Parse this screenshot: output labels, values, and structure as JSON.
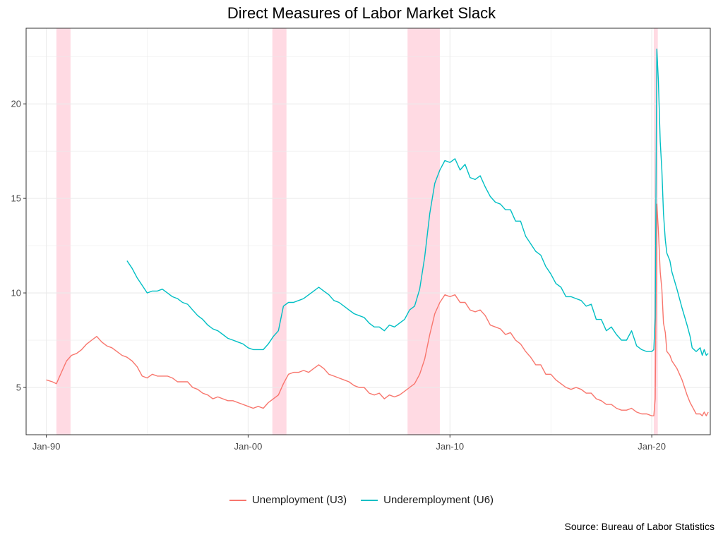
{
  "chart_data": {
    "type": "line",
    "title": "Direct Measures of Labor Market Slack",
    "xlabel": "",
    "ylabel": "",
    "source": "Source: Bureau of Labor Statistics",
    "x_ticks": [
      {
        "label": "Jan-90",
        "year": 1990.0
      },
      {
        "label": "Jan-00",
        "year": 2000.0
      },
      {
        "label": "Jan-10",
        "year": 2010.0
      },
      {
        "label": "Jan-20",
        "year": 2020.0
      }
    ],
    "y_ticks": [
      5,
      10,
      15,
      20
    ],
    "xlim": [
      1989.0,
      2022.9
    ],
    "ylim": [
      2.5,
      24.0
    ],
    "grid": true,
    "legend_position": "bottom",
    "recessions": [
      {
        "start": 1990.5,
        "end": 1991.2
      },
      {
        "start": 2001.2,
        "end": 2001.9
      },
      {
        "start": 2007.9,
        "end": 2009.5
      },
      {
        "start": 2020.1,
        "end": 2020.3
      }
    ],
    "recession_color": "#ffb6c8",
    "series": [
      {
        "name": "Unemployment (U3)",
        "color": "#f8766d",
        "points": [
          [
            1990.0,
            5.4
          ],
          [
            1990.3,
            5.3
          ],
          [
            1990.5,
            5.2
          ],
          [
            1990.75,
            5.8
          ],
          [
            1991.0,
            6.4
          ],
          [
            1991.25,
            6.7
          ],
          [
            1991.5,
            6.8
          ],
          [
            1991.75,
            7.0
          ],
          [
            1992.0,
            7.3
          ],
          [
            1992.25,
            7.5
          ],
          [
            1992.5,
            7.7
          ],
          [
            1992.75,
            7.4
          ],
          [
            1993.0,
            7.2
          ],
          [
            1993.25,
            7.1
          ],
          [
            1993.5,
            6.9
          ],
          [
            1993.75,
            6.7
          ],
          [
            1994.0,
            6.6
          ],
          [
            1994.25,
            6.4
          ],
          [
            1994.5,
            6.1
          ],
          [
            1994.75,
            5.6
          ],
          [
            1995.0,
            5.5
          ],
          [
            1995.25,
            5.7
          ],
          [
            1995.5,
            5.6
          ],
          [
            1995.75,
            5.6
          ],
          [
            1996.0,
            5.6
          ],
          [
            1996.25,
            5.5
          ],
          [
            1996.5,
            5.3
          ],
          [
            1996.75,
            5.3
          ],
          [
            1997.0,
            5.3
          ],
          [
            1997.25,
            5.0
          ],
          [
            1997.5,
            4.9
          ],
          [
            1997.75,
            4.7
          ],
          [
            1998.0,
            4.6
          ],
          [
            1998.25,
            4.4
          ],
          [
            1998.5,
            4.5
          ],
          [
            1998.75,
            4.4
          ],
          [
            1999.0,
            4.3
          ],
          [
            1999.25,
            4.3
          ],
          [
            1999.5,
            4.2
          ],
          [
            1999.75,
            4.1
          ],
          [
            2000.0,
            4.0
          ],
          [
            2000.25,
            3.9
          ],
          [
            2000.5,
            4.0
          ],
          [
            2000.75,
            3.9
          ],
          [
            2001.0,
            4.2
          ],
          [
            2001.25,
            4.4
          ],
          [
            2001.5,
            4.6
          ],
          [
            2001.75,
            5.2
          ],
          [
            2002.0,
            5.7
          ],
          [
            2002.25,
            5.8
          ],
          [
            2002.5,
            5.8
          ],
          [
            2002.75,
            5.9
          ],
          [
            2003.0,
            5.8
          ],
          [
            2003.25,
            6.0
          ],
          [
            2003.5,
            6.2
          ],
          [
            2003.75,
            6.0
          ],
          [
            2004.0,
            5.7
          ],
          [
            2004.25,
            5.6
          ],
          [
            2004.5,
            5.5
          ],
          [
            2004.75,
            5.4
          ],
          [
            2005.0,
            5.3
          ],
          [
            2005.25,
            5.1
          ],
          [
            2005.5,
            5.0
          ],
          [
            2005.75,
            5.0
          ],
          [
            2006.0,
            4.7
          ],
          [
            2006.25,
            4.6
          ],
          [
            2006.5,
            4.7
          ],
          [
            2006.75,
            4.4
          ],
          [
            2007.0,
            4.6
          ],
          [
            2007.25,
            4.5
          ],
          [
            2007.5,
            4.6
          ],
          [
            2007.75,
            4.8
          ],
          [
            2008.0,
            5.0
          ],
          [
            2008.25,
            5.2
          ],
          [
            2008.5,
            5.7
          ],
          [
            2008.75,
            6.5
          ],
          [
            2009.0,
            7.8
          ],
          [
            2009.25,
            8.9
          ],
          [
            2009.5,
            9.5
          ],
          [
            2009.75,
            9.9
          ],
          [
            2010.0,
            9.8
          ],
          [
            2010.25,
            9.9
          ],
          [
            2010.5,
            9.5
          ],
          [
            2010.75,
            9.5
          ],
          [
            2011.0,
            9.1
          ],
          [
            2011.25,
            9.0
          ],
          [
            2011.5,
            9.1
          ],
          [
            2011.75,
            8.8
          ],
          [
            2012.0,
            8.3
          ],
          [
            2012.25,
            8.2
          ],
          [
            2012.5,
            8.1
          ],
          [
            2012.75,
            7.8
          ],
          [
            2013.0,
            7.9
          ],
          [
            2013.25,
            7.5
          ],
          [
            2013.5,
            7.3
          ],
          [
            2013.75,
            6.9
          ],
          [
            2014.0,
            6.6
          ],
          [
            2014.25,
            6.2
          ],
          [
            2014.5,
            6.2
          ],
          [
            2014.75,
            5.7
          ],
          [
            2015.0,
            5.7
          ],
          [
            2015.25,
            5.4
          ],
          [
            2015.5,
            5.2
          ],
          [
            2015.75,
            5.0
          ],
          [
            2016.0,
            4.9
          ],
          [
            2016.25,
            5.0
          ],
          [
            2016.5,
            4.9
          ],
          [
            2016.75,
            4.7
          ],
          [
            2017.0,
            4.7
          ],
          [
            2017.25,
            4.4
          ],
          [
            2017.5,
            4.3
          ],
          [
            2017.75,
            4.1
          ],
          [
            2018.0,
            4.1
          ],
          [
            2018.25,
            3.9
          ],
          [
            2018.5,
            3.8
          ],
          [
            2018.75,
            3.8
          ],
          [
            2019.0,
            3.9
          ],
          [
            2019.25,
            3.7
          ],
          [
            2019.5,
            3.6
          ],
          [
            2019.75,
            3.6
          ],
          [
            2020.0,
            3.5
          ],
          [
            2020.1,
            3.5
          ],
          [
            2020.17,
            4.4
          ],
          [
            2020.25,
            14.7
          ],
          [
            2020.33,
            13.3
          ],
          [
            2020.42,
            11.1
          ],
          [
            2020.5,
            10.2
          ],
          [
            2020.58,
            8.4
          ],
          [
            2020.67,
            7.9
          ],
          [
            2020.75,
            6.9
          ],
          [
            2020.9,
            6.7
          ],
          [
            2021.0,
            6.4
          ],
          [
            2021.25,
            6.0
          ],
          [
            2021.5,
            5.4
          ],
          [
            2021.75,
            4.6
          ],
          [
            2021.9,
            4.2
          ],
          [
            2022.0,
            4.0
          ],
          [
            2022.2,
            3.6
          ],
          [
            2022.4,
            3.6
          ],
          [
            2022.5,
            3.5
          ],
          [
            2022.6,
            3.7
          ],
          [
            2022.7,
            3.5
          ],
          [
            2022.8,
            3.7
          ]
        ]
      },
      {
        "name": "Underemployment (U6)",
        "color": "#00bfc4",
        "points": [
          [
            1994.0,
            11.7
          ],
          [
            1994.25,
            11.3
          ],
          [
            1994.5,
            10.8
          ],
          [
            1994.75,
            10.4
          ],
          [
            1995.0,
            10.0
          ],
          [
            1995.25,
            10.1
          ],
          [
            1995.5,
            10.1
          ],
          [
            1995.75,
            10.2
          ],
          [
            1996.0,
            10.0
          ],
          [
            1996.25,
            9.8
          ],
          [
            1996.5,
            9.7
          ],
          [
            1996.75,
            9.5
          ],
          [
            1997.0,
            9.4
          ],
          [
            1997.25,
            9.1
          ],
          [
            1997.5,
            8.8
          ],
          [
            1997.75,
            8.6
          ],
          [
            1998.0,
            8.3
          ],
          [
            1998.25,
            8.1
          ],
          [
            1998.5,
            8.0
          ],
          [
            1998.75,
            7.8
          ],
          [
            1999.0,
            7.6
          ],
          [
            1999.25,
            7.5
          ],
          [
            1999.5,
            7.4
          ],
          [
            1999.75,
            7.3
          ],
          [
            2000.0,
            7.1
          ],
          [
            2000.25,
            7.0
          ],
          [
            2000.5,
            7.0
          ],
          [
            2000.75,
            7.0
          ],
          [
            2001.0,
            7.3
          ],
          [
            2001.25,
            7.7
          ],
          [
            2001.5,
            8.0
          ],
          [
            2001.75,
            9.3
          ],
          [
            2002.0,
            9.5
          ],
          [
            2002.25,
            9.5
          ],
          [
            2002.5,
            9.6
          ],
          [
            2002.75,
            9.7
          ],
          [
            2003.0,
            9.9
          ],
          [
            2003.25,
            10.1
          ],
          [
            2003.5,
            10.3
          ],
          [
            2003.75,
            10.1
          ],
          [
            2004.0,
            9.9
          ],
          [
            2004.25,
            9.6
          ],
          [
            2004.5,
            9.5
          ],
          [
            2004.75,
            9.3
          ],
          [
            2005.0,
            9.1
          ],
          [
            2005.25,
            8.9
          ],
          [
            2005.5,
            8.8
          ],
          [
            2005.75,
            8.7
          ],
          [
            2006.0,
            8.4
          ],
          [
            2006.25,
            8.2
          ],
          [
            2006.5,
            8.2
          ],
          [
            2006.75,
            8.0
          ],
          [
            2007.0,
            8.3
          ],
          [
            2007.25,
            8.2
          ],
          [
            2007.5,
            8.4
          ],
          [
            2007.75,
            8.6
          ],
          [
            2008.0,
            9.1
          ],
          [
            2008.25,
            9.3
          ],
          [
            2008.5,
            10.2
          ],
          [
            2008.75,
            11.9
          ],
          [
            2009.0,
            14.2
          ],
          [
            2009.25,
            15.8
          ],
          [
            2009.5,
            16.5
          ],
          [
            2009.75,
            17.0
          ],
          [
            2010.0,
            16.9
          ],
          [
            2010.25,
            17.1
          ],
          [
            2010.5,
            16.5
          ],
          [
            2010.75,
            16.8
          ],
          [
            2011.0,
            16.1
          ],
          [
            2011.25,
            16.0
          ],
          [
            2011.5,
            16.2
          ],
          [
            2011.75,
            15.6
          ],
          [
            2012.0,
            15.1
          ],
          [
            2012.25,
            14.8
          ],
          [
            2012.5,
            14.7
          ],
          [
            2012.75,
            14.4
          ],
          [
            2013.0,
            14.4
          ],
          [
            2013.25,
            13.8
          ],
          [
            2013.5,
            13.8
          ],
          [
            2013.75,
            13.0
          ],
          [
            2014.0,
            12.6
          ],
          [
            2014.25,
            12.2
          ],
          [
            2014.5,
            12.0
          ],
          [
            2014.75,
            11.4
          ],
          [
            2015.0,
            11.0
          ],
          [
            2015.25,
            10.5
          ],
          [
            2015.5,
            10.3
          ],
          [
            2015.75,
            9.8
          ],
          [
            2016.0,
            9.8
          ],
          [
            2016.25,
            9.7
          ],
          [
            2016.5,
            9.6
          ],
          [
            2016.75,
            9.3
          ],
          [
            2017.0,
            9.4
          ],
          [
            2017.25,
            8.6
          ],
          [
            2017.5,
            8.6
          ],
          [
            2017.75,
            8.0
          ],
          [
            2018.0,
            8.2
          ],
          [
            2018.25,
            7.8
          ],
          [
            2018.5,
            7.5
          ],
          [
            2018.75,
            7.5
          ],
          [
            2019.0,
            8.0
          ],
          [
            2019.25,
            7.2
          ],
          [
            2019.5,
            7.0
          ],
          [
            2019.75,
            6.9
          ],
          [
            2020.0,
            6.9
          ],
          [
            2020.1,
            7.0
          ],
          [
            2020.17,
            8.7
          ],
          [
            2020.25,
            22.9
          ],
          [
            2020.33,
            21.2
          ],
          [
            2020.42,
            18.0
          ],
          [
            2020.5,
            16.5
          ],
          [
            2020.58,
            14.2
          ],
          [
            2020.67,
            12.8
          ],
          [
            2020.75,
            12.1
          ],
          [
            2020.9,
            11.7
          ],
          [
            2021.0,
            11.1
          ],
          [
            2021.25,
            10.2
          ],
          [
            2021.5,
            9.2
          ],
          [
            2021.75,
            8.3
          ],
          [
            2021.9,
            7.7
          ],
          [
            2022.0,
            7.1
          ],
          [
            2022.2,
            6.9
          ],
          [
            2022.4,
            7.1
          ],
          [
            2022.5,
            6.7
          ],
          [
            2022.6,
            7.0
          ],
          [
            2022.7,
            6.7
          ],
          [
            2022.8,
            6.8
          ]
        ]
      }
    ]
  }
}
